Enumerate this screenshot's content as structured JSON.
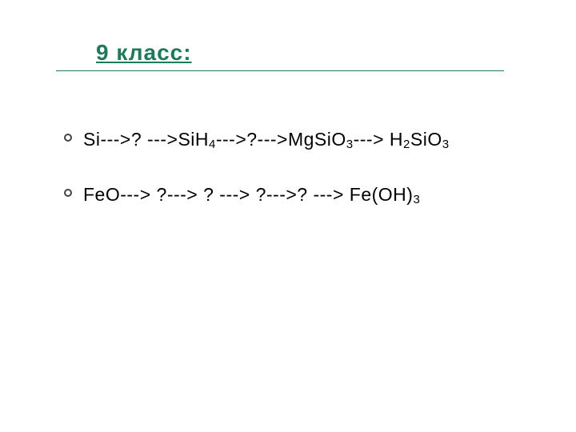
{
  "title": " 9 класс:",
  "title_color": "#1f7a5c",
  "title_fontsize": 28,
  "rule_color": "#1f7a5c",
  "text_color": "#000000",
  "bullet_border_color": "#444444",
  "body_fontsize": 23,
  "lines": [
    {
      "segments": [
        {
          "t": "Si--->? --->SiH"
        },
        {
          "sub": "4"
        },
        {
          "t": "--->?--->MgSiO"
        },
        {
          "sub": "3"
        },
        {
          "t": "---> H"
        },
        {
          "sub": "2"
        },
        {
          "t": "SiO"
        },
        {
          "sub": "3"
        }
      ]
    },
    {
      "segments": [
        {
          "t": "FeO---> ?---> ? ---> ?--->? ---> Fe(OH)"
        },
        {
          "sub": "3"
        }
      ]
    }
  ]
}
